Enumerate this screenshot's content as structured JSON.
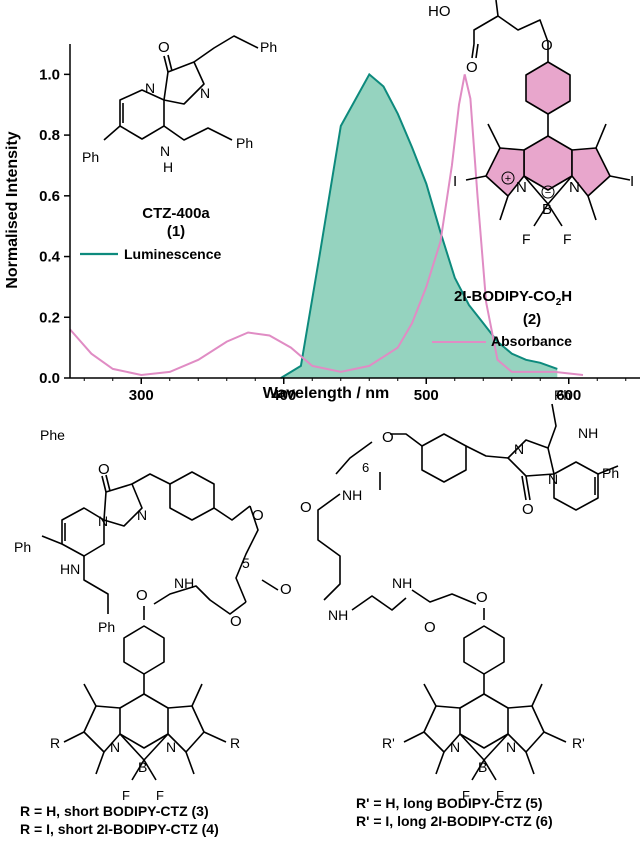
{
  "chart_data": {
    "type": "area",
    "xlabel": "Wavelength / nm",
    "ylabel": "Normalised Intensity",
    "xlim": [
      250,
      650
    ],
    "ylim": [
      0,
      1.1
    ],
    "x_ticks": [
      "300",
      "400",
      "500",
      "600"
    ],
    "y_ticks": [
      "0.0",
      "0.2",
      "0.4",
      "0.6",
      "0.8",
      "1.0"
    ],
    "grid": false,
    "colors": {
      "luminescence": "#0d8a7d",
      "luminescence_fill": "#95d3bf",
      "absorbance": "#e08cc4"
    },
    "series": [
      {
        "name": "Luminescence",
        "x": [
          398,
          412,
          425,
          440,
          460,
          470,
          480,
          490,
          500,
          510,
          520,
          530,
          540,
          550,
          560,
          570,
          580,
          592
        ],
        "values": [
          0.0,
          0.04,
          0.4,
          0.83,
          1.0,
          0.96,
          0.87,
          0.76,
          0.64,
          0.48,
          0.33,
          0.24,
          0.18,
          0.12,
          0.08,
          0.06,
          0.05,
          0.03
        ]
      },
      {
        "name": "Absorbance",
        "x": [
          250,
          265,
          280,
          300,
          320,
          340,
          360,
          375,
          390,
          405,
          420,
          440,
          460,
          480,
          490,
          500,
          510,
          518,
          523,
          527,
          531,
          536,
          542,
          550,
          560,
          575,
          590,
          610
        ],
        "values": [
          0.16,
          0.08,
          0.03,
          0.01,
          0.02,
          0.06,
          0.12,
          0.15,
          0.14,
          0.1,
          0.04,
          0.02,
          0.04,
          0.1,
          0.18,
          0.3,
          0.45,
          0.7,
          0.9,
          1.0,
          0.92,
          0.6,
          0.25,
          0.06,
          0.02,
          0.02,
          0.02,
          0.01
        ]
      }
    ],
    "annotations": [
      "Luminescence",
      "Absorbance",
      "Phe"
    ]
  },
  "compounds": {
    "ctz_name": "CTZ-400a",
    "ctz_num": "(1)",
    "bodipy_name": "2I-BODIPY-CO",
    "bodipy_sub": "2",
    "bodipy_tail": "H",
    "bodipy_num": "(2)",
    "short_line1": "R = H, short BODIPY-CTZ (3)",
    "short_line2": "R = I, short 2I-BODIPY-CTZ (4)",
    "long_line1": "R' = H, long BODIPY-CTZ  (5)",
    "long_line2": "R' = I, long 2I-BODIPY-CTZ (6)"
  },
  "atoms": {
    "O": "O",
    "N": "N",
    "NH": "NH",
    "HN": "HN",
    "H": "H",
    "Ph": "Ph",
    "I": "I",
    "R": "R",
    "Rp": "R'",
    "B": "B",
    "F": "F",
    "HO": "HO",
    "plus": "+",
    "minus": "−",
    "n5": "5",
    "n6": "6"
  }
}
